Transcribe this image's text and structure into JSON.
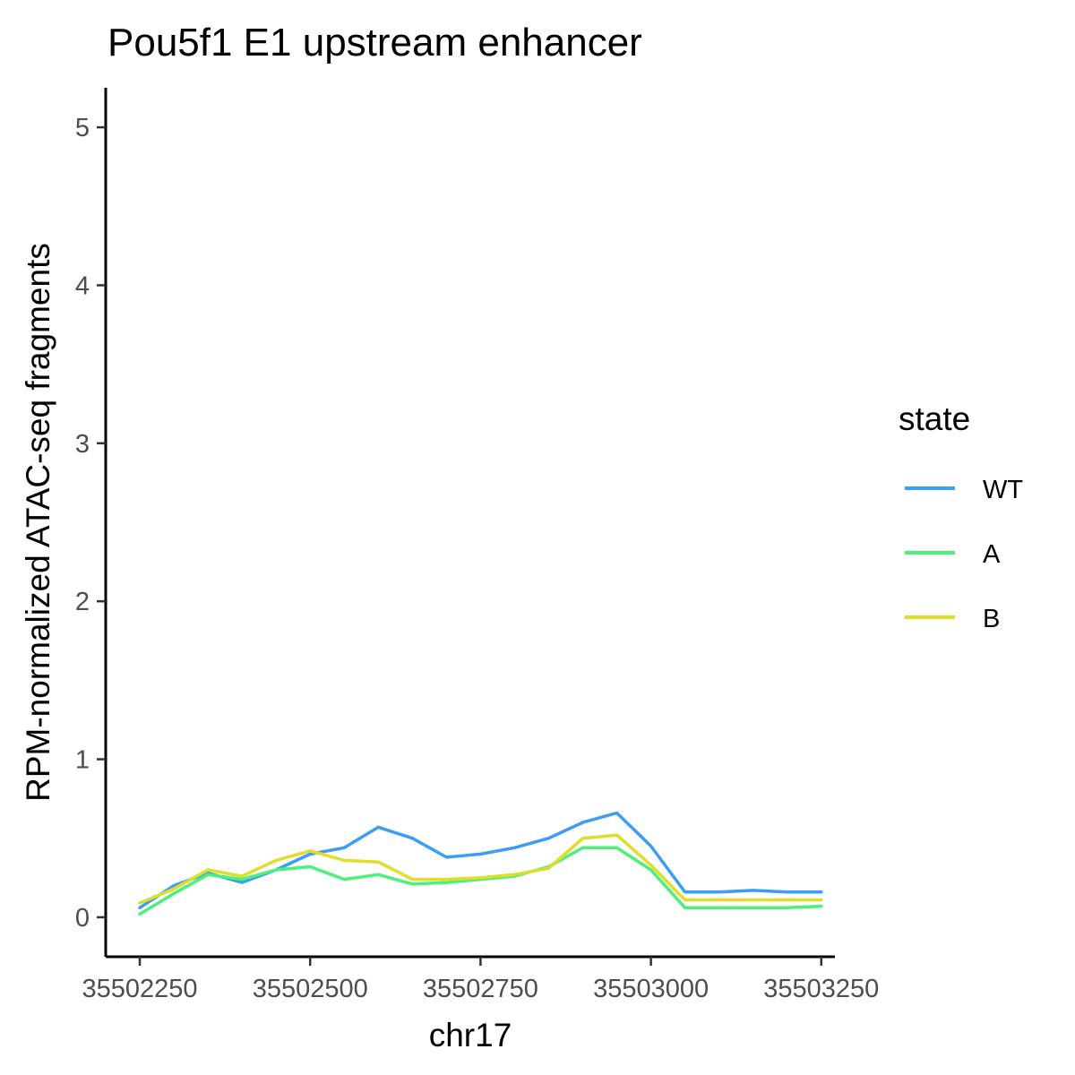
{
  "chart_data": {
    "type": "line",
    "title": "Pou5f1 E1 upstream enhancer",
    "xlabel": "chr17",
    "ylabel": "RPM-normalized ATAC-seq fragments",
    "xlim": [
      35502200,
      35503270
    ],
    "ylim": [
      -0.25,
      5.25
    ],
    "x_ticks": [
      35502250,
      35502500,
      35502750,
      35503000,
      35503250
    ],
    "x_tick_labels": [
      "35502250",
      "35502500",
      "35502750",
      "35503000",
      "35503250"
    ],
    "y_ticks": [
      0,
      1,
      2,
      3,
      4,
      5
    ],
    "y_tick_labels": [
      "0",
      "1",
      "2",
      "3",
      "4",
      "5"
    ],
    "grid": false,
    "legend": {
      "title": "state",
      "position": "right"
    },
    "x": [
      35502250,
      35502300,
      35502350,
      35502400,
      35502450,
      35502500,
      35502550,
      35502600,
      35502650,
      35502700,
      35502750,
      35502800,
      35502850,
      35502900,
      35502950,
      35503000,
      35503050,
      35503100,
      35503150,
      35503200,
      35503250
    ],
    "series": [
      {
        "name": "WT",
        "color": "#3d9df5",
        "values": [
          0.06,
          0.2,
          0.28,
          0.22,
          0.3,
          0.4,
          0.44,
          0.57,
          0.5,
          0.38,
          0.4,
          0.44,
          0.5,
          0.6,
          0.66,
          0.45,
          0.16,
          0.16,
          0.17,
          0.16,
          0.16
        ]
      },
      {
        "name": "A",
        "color": "#4cf07a",
        "values": [
          0.02,
          0.15,
          0.27,
          0.24,
          0.3,
          0.32,
          0.24,
          0.27,
          0.21,
          0.22,
          0.24,
          0.26,
          0.32,
          0.44,
          0.44,
          0.3,
          0.06,
          0.06,
          0.06,
          0.06,
          0.07
        ]
      },
      {
        "name": "B",
        "color": "#dede2b",
        "values": [
          0.09,
          0.18,
          0.3,
          0.26,
          0.36,
          0.42,
          0.36,
          0.35,
          0.24,
          0.24,
          0.25,
          0.27,
          0.31,
          0.5,
          0.52,
          0.33,
          0.11,
          0.11,
          0.11,
          0.11,
          0.11
        ]
      }
    ]
  }
}
